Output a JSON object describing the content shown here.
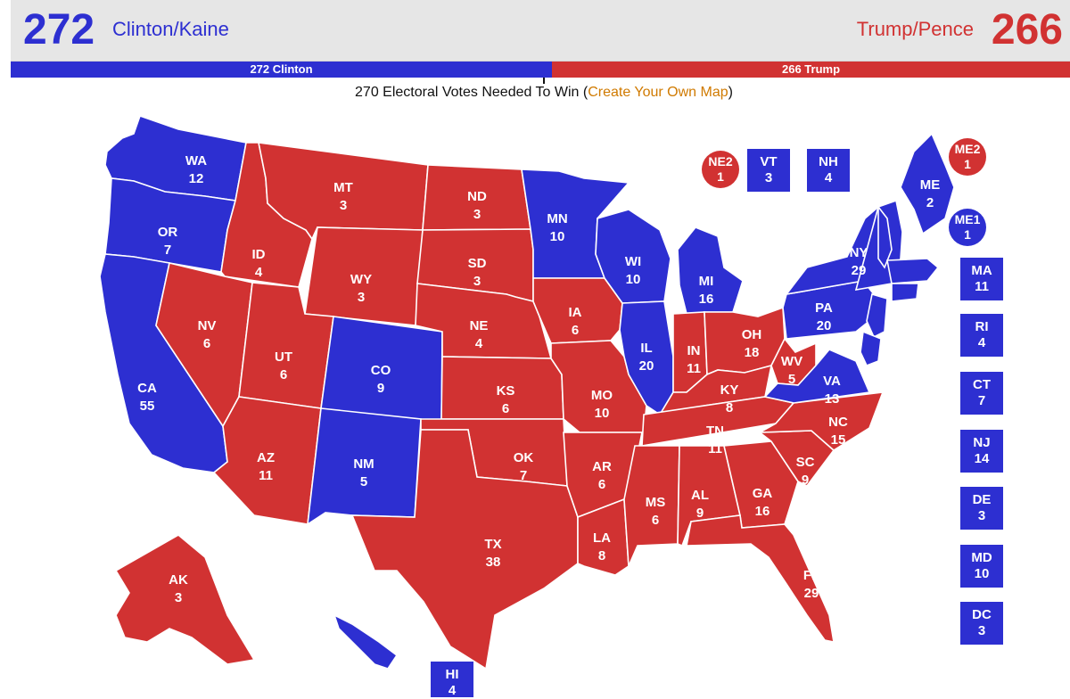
{
  "header": {
    "dem_total": "272",
    "dem_ticket": "Clinton/Kaine",
    "rep_ticket": "Trump/Pence",
    "rep_total": "266",
    "dem_bar": "272 Clinton",
    "rep_bar": "266 Trump",
    "needed_text": "270 Electoral Votes Needed To Win (",
    "needed_link": "Create Your Own Map",
    "needed_close": ")"
  },
  "colors": {
    "dem": "#2d2fd1",
    "rep": "#d13232",
    "link": "#d07a00"
  },
  "states": [
    {
      "abbr": "WA",
      "ev": "12",
      "party": "dem"
    },
    {
      "abbr": "OR",
      "ev": "7",
      "party": "dem"
    },
    {
      "abbr": "CA",
      "ev": "55",
      "party": "dem"
    },
    {
      "abbr": "ID",
      "ev": "4",
      "party": "rep"
    },
    {
      "abbr": "NV",
      "ev": "6",
      "party": "rep"
    },
    {
      "abbr": "MT",
      "ev": "3",
      "party": "rep"
    },
    {
      "abbr": "WY",
      "ev": "3",
      "party": "rep"
    },
    {
      "abbr": "UT",
      "ev": "6",
      "party": "rep"
    },
    {
      "abbr": "AZ",
      "ev": "11",
      "party": "rep"
    },
    {
      "abbr": "CO",
      "ev": "9",
      "party": "dem"
    },
    {
      "abbr": "NM",
      "ev": "5",
      "party": "dem"
    },
    {
      "abbr": "ND",
      "ev": "3",
      "party": "rep"
    },
    {
      "abbr": "SD",
      "ev": "3",
      "party": "rep"
    },
    {
      "abbr": "NE",
      "ev": "4",
      "party": "rep"
    },
    {
      "abbr": "KS",
      "ev": "6",
      "party": "rep"
    },
    {
      "abbr": "OK",
      "ev": "7",
      "party": "rep"
    },
    {
      "abbr": "TX",
      "ev": "38",
      "party": "rep"
    },
    {
      "abbr": "MN",
      "ev": "10",
      "party": "dem"
    },
    {
      "abbr": "IA",
      "ev": "6",
      "party": "rep"
    },
    {
      "abbr": "MO",
      "ev": "10",
      "party": "rep"
    },
    {
      "abbr": "AR",
      "ev": "6",
      "party": "rep"
    },
    {
      "abbr": "LA",
      "ev": "8",
      "party": "rep"
    },
    {
      "abbr": "WI",
      "ev": "10",
      "party": "dem"
    },
    {
      "abbr": "IL",
      "ev": "20",
      "party": "dem"
    },
    {
      "abbr": "MI",
      "ev": "16",
      "party": "dem"
    },
    {
      "abbr": "IN",
      "ev": "11",
      "party": "rep"
    },
    {
      "abbr": "OH",
      "ev": "18",
      "party": "rep"
    },
    {
      "abbr": "KY",
      "ev": "8",
      "party": "rep"
    },
    {
      "abbr": "TN",
      "ev": "11",
      "party": "rep"
    },
    {
      "abbr": "MS",
      "ev": "6",
      "party": "rep"
    },
    {
      "abbr": "AL",
      "ev": "9",
      "party": "rep"
    },
    {
      "abbr": "GA",
      "ev": "16",
      "party": "rep"
    },
    {
      "abbr": "FL",
      "ev": "29",
      "party": "rep"
    },
    {
      "abbr": "SC",
      "ev": "9",
      "party": "rep"
    },
    {
      "abbr": "NC",
      "ev": "15",
      "party": "rep"
    },
    {
      "abbr": "WV",
      "ev": "5",
      "party": "rep"
    },
    {
      "abbr": "VA",
      "ev": "13",
      "party": "dem"
    },
    {
      "abbr": "PA",
      "ev": "20",
      "party": "dem"
    },
    {
      "abbr": "NY",
      "ev": "29",
      "party": "dem"
    },
    {
      "abbr": "ME",
      "ev": "2",
      "party": "dem"
    },
    {
      "abbr": "AK",
      "ev": "3",
      "party": "rep"
    },
    {
      "abbr": "HI",
      "ev": "4",
      "party": "dem"
    }
  ],
  "small_states": [
    {
      "abbr": "VT",
      "ev": "3",
      "party": "dem"
    },
    {
      "abbr": "NH",
      "ev": "4",
      "party": "dem"
    },
    {
      "abbr": "MA",
      "ev": "11",
      "party": "dem"
    },
    {
      "abbr": "RI",
      "ev": "4",
      "party": "dem"
    },
    {
      "abbr": "CT",
      "ev": "7",
      "party": "dem"
    },
    {
      "abbr": "NJ",
      "ev": "14",
      "party": "dem"
    },
    {
      "abbr": "DE",
      "ev": "3",
      "party": "dem"
    },
    {
      "abbr": "MD",
      "ev": "10",
      "party": "dem"
    },
    {
      "abbr": "DC",
      "ev": "3",
      "party": "dem"
    }
  ],
  "districts": [
    {
      "abbr": "NE2",
      "ev": "1",
      "party": "rep"
    },
    {
      "abbr": "ME2",
      "ev": "1",
      "party": "rep"
    },
    {
      "abbr": "ME1",
      "ev": "1",
      "party": "dem"
    }
  ]
}
